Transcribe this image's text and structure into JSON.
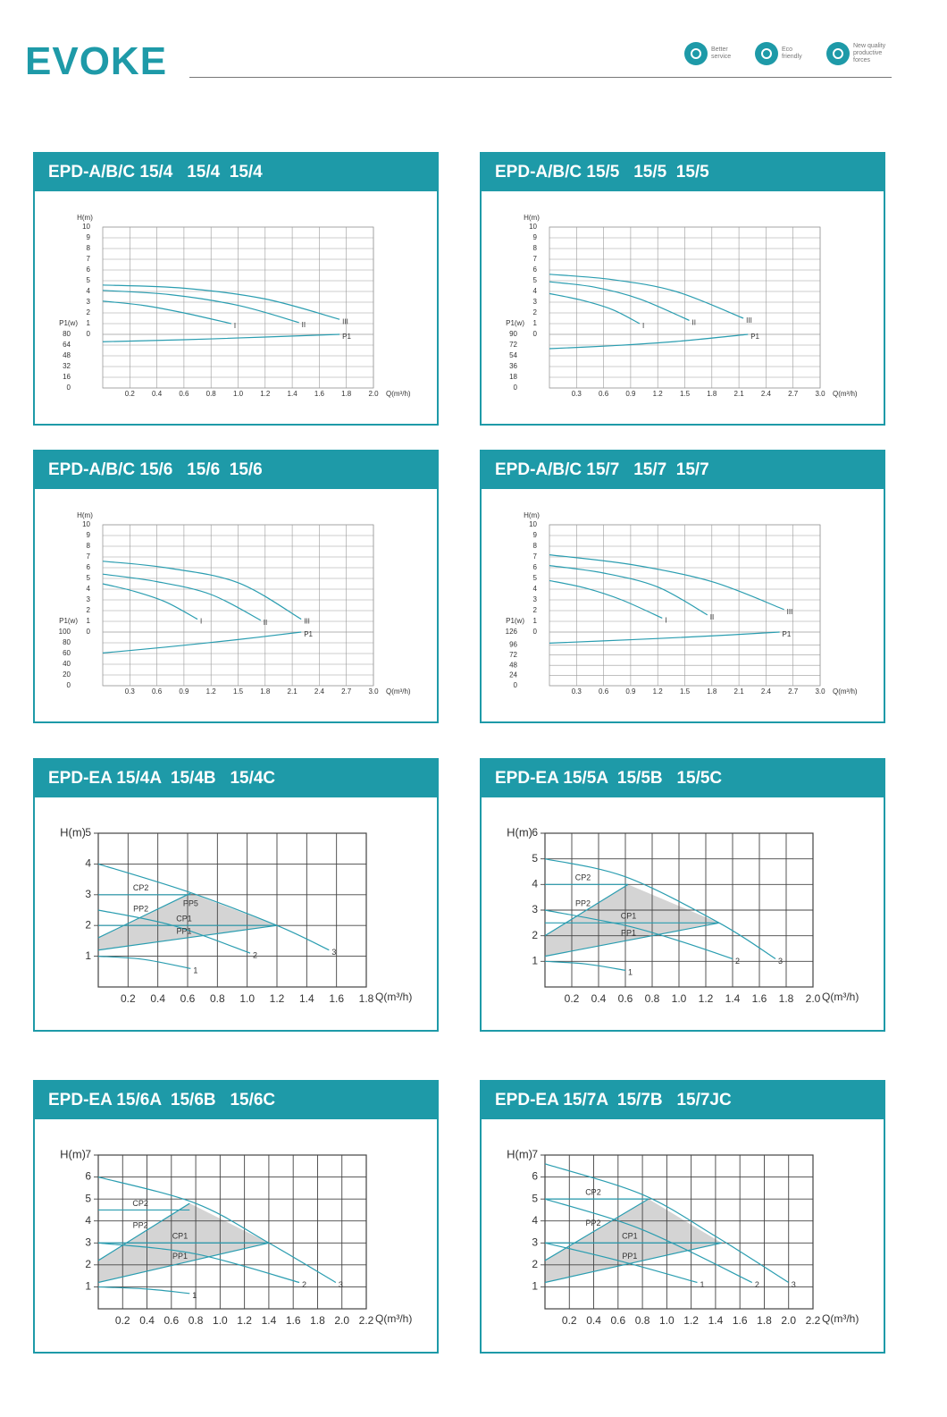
{
  "header": {
    "logo": "EVOKE",
    "badges": [
      [
        "Better",
        "service"
      ],
      [
        "Eco",
        "friendly"
      ],
      [
        "New quality",
        "productive",
        "forces"
      ]
    ]
  },
  "chart_data": [
    {
      "type": "line",
      "title": "EPD-A/B/C 15/4   15/4  15/4",
      "xlabel": "Q(m³/h)",
      "ylabel": "H(m)",
      "y2label": "P1(w)",
      "grid": true,
      "xlim": [
        0,
        2
      ],
      "xticks": [
        0.2,
        0.4,
        0.6,
        0.8,
        {
          "value": 1,
          "label": "1.0"
        },
        1.2,
        1.4,
        1.6,
        1.8,
        {
          "value": 2,
          "label": "2.0"
        }
      ],
      "ylim": [
        0,
        10
      ],
      "yticks": [
        0,
        1,
        2,
        3,
        4,
        5,
        6,
        7,
        8,
        9,
        10
      ],
      "y2lim": [
        0,
        80
      ],
      "y2ticks": [
        0,
        16,
        32,
        48,
        64,
        80
      ],
      "series": [
        {
          "name": "I",
          "color": "#2a9db0",
          "x": [
            0,
            0.3,
            0.6,
            0.95
          ],
          "values": [
            3.1,
            2.7,
            2.0,
            1.0
          ]
        },
        {
          "name": "II",
          "color": "#2a9db0",
          "x": [
            0,
            0.5,
            1.0,
            1.45
          ],
          "values": [
            4.1,
            3.7,
            2.7,
            1.1
          ]
        },
        {
          "name": "III",
          "color": "#2a9db0",
          "x": [
            0,
            0.6,
            1.2,
            1.75
          ],
          "values": [
            4.6,
            4.3,
            3.3,
            1.4
          ]
        },
        {
          "name": "P1",
          "color": "#2a9db0",
          "axis": "y2",
          "x": [
            0,
            0.6,
            1.2,
            1.75
          ],
          "values": [
            69,
            72,
            76,
            80
          ]
        }
      ]
    },
    {
      "type": "line",
      "title": "EPD-A/B/C 15/5   15/5  15/5",
      "xlabel": "Q(m³/h)",
      "ylabel": "H(m)",
      "y2label": "P1(w)",
      "grid": true,
      "xlim": [
        0,
        3
      ],
      "xticks": [
        0.3,
        0.6,
        0.9,
        1.2,
        1.5,
        1.8,
        2.1,
        2.4,
        2.7,
        {
          "value": 3,
          "label": "3.0"
        }
      ],
      "ylim": [
        0,
        10
      ],
      "yticks": [
        0,
        1,
        2,
        3,
        4,
        5,
        6,
        7,
        8,
        9,
        10
      ],
      "y2lim": [
        0,
        90
      ],
      "y2ticks": [
        0,
        18,
        36,
        54,
        72,
        90
      ],
      "series": [
        {
          "name": "I",
          "color": "#2a9db0",
          "x": [
            0,
            0.35,
            0.7,
            1.0
          ],
          "values": [
            3.8,
            3.2,
            2.3,
            1.0
          ]
        },
        {
          "name": "II",
          "color": "#2a9db0",
          "x": [
            0,
            0.5,
            1.0,
            1.55
          ],
          "values": [
            4.9,
            4.4,
            3.3,
            1.3
          ]
        },
        {
          "name": "III",
          "color": "#2a9db0",
          "x": [
            0,
            0.7,
            1.4,
            2.15
          ],
          "values": [
            5.6,
            5.1,
            4.0,
            1.5
          ]
        },
        {
          "name": "P1",
          "color": "#2a9db0",
          "axis": "y2",
          "x": [
            0,
            0.7,
            1.4,
            2.2
          ],
          "values": [
            66,
            71,
            78,
            90
          ]
        }
      ]
    },
    {
      "type": "line",
      "title": "EPD-A/B/C 15/6   15/6  15/6",
      "xlabel": "Q(m³/h)",
      "ylabel": "H(m)",
      "y2label": "P1(w)",
      "grid": true,
      "xlim": [
        0,
        3
      ],
      "xticks": [
        0.3,
        0.6,
        0.9,
        1.2,
        1.5,
        1.8,
        2.1,
        2.4,
        2.7,
        {
          "value": 3,
          "label": "3.0"
        }
      ],
      "ylim": [
        0,
        10
      ],
      "yticks": [
        0,
        1,
        2,
        3,
        4,
        5,
        6,
        7,
        8,
        9,
        10
      ],
      "y2lim": [
        0,
        100
      ],
      "y2ticks": [
        0,
        20,
        40,
        60,
        80,
        100
      ],
      "series": [
        {
          "name": "I",
          "color": "#2a9db0",
          "x": [
            0,
            0.35,
            0.7,
            1.05
          ],
          "values": [
            4.5,
            3.8,
            2.8,
            1.2
          ]
        },
        {
          "name": "II",
          "color": "#2a9db0",
          "x": [
            0,
            0.6,
            1.2,
            1.75
          ],
          "values": [
            5.4,
            4.7,
            3.5,
            1.1
          ]
        },
        {
          "name": "III",
          "color": "#2a9db0",
          "x": [
            0,
            0.7,
            1.5,
            2.2
          ],
          "values": [
            6.6,
            6.0,
            4.6,
            1.2
          ]
        },
        {
          "name": "P1",
          "color": "#2a9db0",
          "axis": "y2",
          "x": [
            0,
            0.7,
            1.5,
            2.2
          ],
          "values": [
            61,
            72,
            86,
            100
          ]
        }
      ]
    },
    {
      "type": "line",
      "title": "EPD-A/B/C 15/7   15/7  15/7",
      "xlabel": "Q(m³/h)",
      "ylabel": "H(m)",
      "y2label": "P1(w)",
      "grid": true,
      "xlim": [
        0,
        3
      ],
      "xticks": [
        0.3,
        0.6,
        0.9,
        1.2,
        1.5,
        1.8,
        2.1,
        2.4,
        2.7,
        {
          "value": 3,
          "label": "3.0"
        }
      ],
      "ylim": [
        0,
        10
      ],
      "yticks": [
        0,
        1,
        2,
        3,
        4,
        5,
        6,
        7,
        8,
        9,
        10
      ],
      "y2lim": [
        0,
        126
      ],
      "y2ticks": [
        0,
        24,
        48,
        72,
        96,
        126
      ],
      "series": [
        {
          "name": "I",
          "color": "#2a9db0",
          "x": [
            0,
            0.4,
            0.8,
            1.25
          ],
          "values": [
            4.8,
            4.1,
            3.0,
            1.3
          ]
        },
        {
          "name": "II",
          "color": "#2a9db0",
          "x": [
            0,
            0.6,
            1.2,
            1.75
          ],
          "values": [
            6.2,
            5.5,
            4.2,
            1.6
          ]
        },
        {
          "name": "III",
          "color": "#2a9db0",
          "x": [
            0,
            0.9,
            1.8,
            2.6
          ],
          "values": [
            7.2,
            6.3,
            4.7,
            2.1
          ]
        },
        {
          "name": "P1",
          "color": "#2a9db0",
          "axis": "y2",
          "x": [
            0,
            0.9,
            1.8,
            2.55
          ],
          "values": [
            100,
            108,
            117,
            126
          ]
        }
      ]
    },
    {
      "type": "line",
      "title": "EPD-EA 15/4A  15/4B   15/4C",
      "xlabel": "Q(m³/h)",
      "ylabel": "H(m)",
      "grid": true,
      "xlim": [
        0,
        1.8
      ],
      "xticks": [
        0.2,
        0.4,
        0.6,
        0.8,
        {
          "value": 1,
          "label": "1.0"
        },
        1.2,
        1.4,
        1.6,
        1.8
      ],
      "ylim": [
        0,
        5
      ],
      "yticks": [
        1,
        2,
        3,
        4,
        5
      ],
      "areas": [
        {
          "name": "PP5",
          "color": "#d4d4d4",
          "x": [
            0,
            0,
            0.62,
            1.2
          ],
          "values": [
            1.2,
            1.6,
            3.05,
            2.0
          ]
        }
      ],
      "series": [
        {
          "name": "1",
          "color": "#2a9db0",
          "x": [
            0,
            0.3,
            0.62
          ],
          "values": [
            1.0,
            0.9,
            0.6
          ]
        },
        {
          "name": "2",
          "color": "#2a9db0",
          "x": [
            0,
            0.5,
            1.02
          ],
          "values": [
            2.5,
            2.0,
            1.1
          ]
        },
        {
          "name": "3",
          "color": "#2a9db0",
          "x": [
            0,
            0.6,
            1.2,
            1.55
          ],
          "values": [
            4.0,
            3.1,
            2.0,
            1.2
          ]
        },
        {
          "name": "CP2",
          "color": "#2a9db0",
          "x": [
            0,
            0.62
          ],
          "values": [
            3,
            3
          ]
        },
        {
          "name": "PP2",
          "color": "#2a9db0",
          "x": [
            0,
            0.62
          ],
          "values": [
            1.6,
            3.05
          ]
        },
        {
          "name": "CP1",
          "color": "#2a9db0",
          "x": [
            0,
            1.2
          ],
          "values": [
            2,
            2
          ]
        },
        {
          "name": "PP1",
          "color": "#2a9db0",
          "x": [
            0,
            1.2
          ],
          "values": [
            1.2,
            2.0
          ]
        }
      ]
    },
    {
      "type": "line",
      "title": "EPD-EA 15/5A  15/5B   15/5C",
      "xlabel": "Q(m³/h)",
      "ylabel": "H(m)",
      "grid": true,
      "xlim": [
        0,
        2
      ],
      "xticks": [
        0.2,
        0.4,
        0.6,
        0.8,
        {
          "value": 1,
          "label": "1.0"
        },
        1.2,
        1.4,
        1.6,
        1.8,
        {
          "value": 2,
          "label": "2.0"
        }
      ],
      "ylim": [
        0,
        6
      ],
      "yticks": [
        1,
        2,
        3,
        4,
        5,
        6
      ],
      "areas": [
        {
          "color": "#d4d4d4",
          "x": [
            0,
            0,
            0.62,
            1.3
          ],
          "values": [
            1.2,
            2.0,
            4.0,
            2.5
          ]
        }
      ],
      "series": [
        {
          "name": "1",
          "color": "#2a9db0",
          "x": [
            0,
            0.3,
            0.6
          ],
          "values": [
            1.0,
            0.9,
            0.65
          ]
        },
        {
          "name": "2",
          "color": "#2a9db0",
          "x": [
            0,
            0.6,
            1.0,
            1.4
          ],
          "values": [
            3.0,
            2.4,
            1.8,
            1.1
          ]
        },
        {
          "name": "3",
          "color": "#2a9db0",
          "x": [
            0,
            0.6,
            1.3,
            1.72
          ],
          "values": [
            5.0,
            4.3,
            2.5,
            1.1
          ]
        },
        {
          "name": "CP2",
          "color": "#2a9db0",
          "x": [
            0,
            0.62
          ],
          "values": [
            4,
            4
          ]
        },
        {
          "name": "PP2",
          "color": "#2a9db0",
          "x": [
            0,
            0.62
          ],
          "values": [
            2.0,
            4.0
          ]
        },
        {
          "name": "CP1",
          "color": "#2a9db0",
          "x": [
            0,
            1.3
          ],
          "values": [
            2.5,
            2.5
          ]
        },
        {
          "name": "PP1",
          "color": "#2a9db0",
          "x": [
            0,
            1.3
          ],
          "values": [
            1.2,
            2.5
          ]
        }
      ]
    },
    {
      "type": "line",
      "title": "EPD-EA 15/6A  15/6B   15/6C",
      "xlabel": "Q(m³/h)",
      "ylabel": "H(m)",
      "grid": true,
      "xlim": [
        0,
        2.2
      ],
      "xticks": [
        0.2,
        0.4,
        0.6,
        0.8,
        {
          "value": 1,
          "label": "1.0"
        },
        1.2,
        1.4,
        1.6,
        1.8,
        {
          "value": 2,
          "label": "2.0"
        },
        2.2
      ],
      "ylim": [
        0,
        7
      ],
      "yticks": [
        1,
        2,
        3,
        4,
        5,
        6,
        7
      ],
      "areas": [
        {
          "color": "#d4d4d4",
          "x": [
            0,
            0,
            0.75,
            1.4
          ],
          "values": [
            1.2,
            2.2,
            4.8,
            3.0
          ]
        }
      ],
      "series": [
        {
          "name": "1",
          "color": "#2a9db0",
          "x": [
            0,
            0.4,
            0.75
          ],
          "values": [
            1.0,
            0.9,
            0.7
          ]
        },
        {
          "name": "2",
          "color": "#2a9db0",
          "x": [
            0,
            0.8,
            1.65
          ],
          "values": [
            3.0,
            2.5,
            1.2
          ]
        },
        {
          "name": "3",
          "color": "#2a9db0",
          "x": [
            0,
            0.8,
            1.4,
            1.95
          ],
          "values": [
            6.0,
            4.8,
            3.0,
            1.2
          ]
        },
        {
          "name": "CP2",
          "color": "#2a9db0",
          "x": [
            0,
            0.75
          ],
          "values": [
            4.5,
            4.5
          ]
        },
        {
          "name": "PP2",
          "color": "#2a9db0",
          "x": [
            0,
            0.75
          ],
          "values": [
            2.2,
            4.8
          ]
        },
        {
          "name": "CP1",
          "color": "#2a9db0",
          "x": [
            0,
            1.4
          ],
          "values": [
            3,
            3
          ]
        },
        {
          "name": "PP1",
          "color": "#2a9db0",
          "x": [
            0,
            1.4
          ],
          "values": [
            1.2,
            3.0
          ]
        }
      ]
    },
    {
      "type": "line",
      "title": "EPD-EA 15/7A  15/7B   15/7JC",
      "xlabel": "Q(m³/h)",
      "ylabel": "H(m)",
      "grid": true,
      "xlim": [
        0,
        2.2
      ],
      "xticks": [
        0.2,
        0.4,
        0.6,
        0.8,
        {
          "value": 1,
          "label": "1.0"
        },
        1.2,
        1.4,
        1.6,
        1.8,
        {
          "value": 2,
          "label": "2.0"
        },
        2.2
      ],
      "ylim": [
        0,
        7
      ],
      "yticks": [
        1,
        2,
        3,
        4,
        5,
        6,
        7
      ],
      "areas": [
        {
          "color": "#d4d4d4",
          "x": [
            0,
            0,
            0.85,
            1.45
          ],
          "values": [
            1.2,
            2.2,
            5.0,
            3.0
          ]
        }
      ],
      "series": [
        {
          "name": "1",
          "color": "#2a9db0",
          "x": [
            0,
            0.6,
            1.25
          ],
          "values": [
            3.0,
            2.2,
            1.2
          ]
        },
        {
          "name": "2",
          "color": "#2a9db0",
          "x": [
            0,
            0.8,
            1.7
          ],
          "values": [
            5.0,
            3.6,
            1.2
          ]
        },
        {
          "name": "3",
          "color": "#2a9db0",
          "x": [
            0,
            0.8,
            1.4,
            2.0
          ],
          "values": [
            6.6,
            5.2,
            3.3,
            1.2
          ]
        },
        {
          "name": "CP2",
          "color": "#2a9db0",
          "x": [
            0,
            0.85
          ],
          "values": [
            5,
            5
          ]
        },
        {
          "name": "PP2",
          "color": "#2a9db0",
          "x": [
            0,
            0.85
          ],
          "values": [
            2.2,
            5.0
          ]
        },
        {
          "name": "CP1",
          "color": "#2a9db0",
          "x": [
            0,
            1.45
          ],
          "values": [
            3,
            3
          ]
        },
        {
          "name": "PP1",
          "color": "#2a9db0",
          "x": [
            0,
            1.45
          ],
          "values": [
            1.2,
            3.0
          ]
        }
      ]
    }
  ]
}
